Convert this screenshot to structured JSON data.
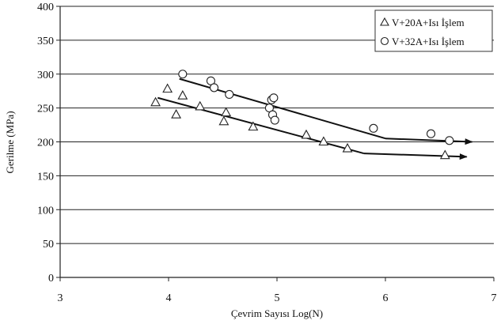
{
  "chart_data": {
    "type": "scatter",
    "xlabel": "Çevrim Sayısı Log(N)",
    "ylabel": "Gerilme (MPa)",
    "xlim": [
      3,
      7
    ],
    "ylim": [
      0,
      400
    ],
    "xticks": [
      "3",
      "4",
      "5",
      "6",
      "7"
    ],
    "yticks": [
      "0",
      "50",
      "100",
      "150",
      "200",
      "250",
      "300",
      "350",
      "400"
    ],
    "grid": "horizontal",
    "legend_position": "top-right",
    "series": [
      {
        "name": "V+20A+Isı İşlem",
        "marker": "triangle",
        "points": [
          [
            3.88,
            258
          ],
          [
            3.99,
            278
          ],
          [
            4.07,
            240
          ],
          [
            4.13,
            268
          ],
          [
            4.29,
            252
          ],
          [
            4.51,
            230
          ],
          [
            4.53,
            243
          ],
          [
            4.78,
            222
          ],
          [
            5.27,
            210
          ],
          [
            5.43,
            200
          ],
          [
            5.65,
            190
          ],
          [
            6.55,
            180
          ]
        ],
        "fit": {
          "x": [
            3.9,
            5.8
          ],
          "y": [
            265,
            183
          ]
        },
        "runout": {
          "x": [
            5.8,
            6.75
          ],
          "y": [
            183,
            178
          ]
        }
      },
      {
        "name": "V+32A+Isı İşlem",
        "marker": "circle",
        "points": [
          [
            4.13,
            300
          ],
          [
            4.39,
            290
          ],
          [
            4.42,
            280
          ],
          [
            4.56,
            270
          ],
          [
            4.93,
            250
          ],
          [
            4.95,
            262
          ],
          [
            4.97,
            265
          ],
          [
            4.96,
            240
          ],
          [
            4.98,
            232
          ],
          [
            5.89,
            220
          ],
          [
            6.42,
            212
          ],
          [
            6.59,
            202
          ]
        ],
        "fit": {
          "x": [
            4.1,
            6.0
          ],
          "y": [
            293,
            205
          ]
        },
        "runout": {
          "x": [
            6.0,
            6.8
          ],
          "y": [
            205,
            200
          ]
        }
      }
    ]
  }
}
